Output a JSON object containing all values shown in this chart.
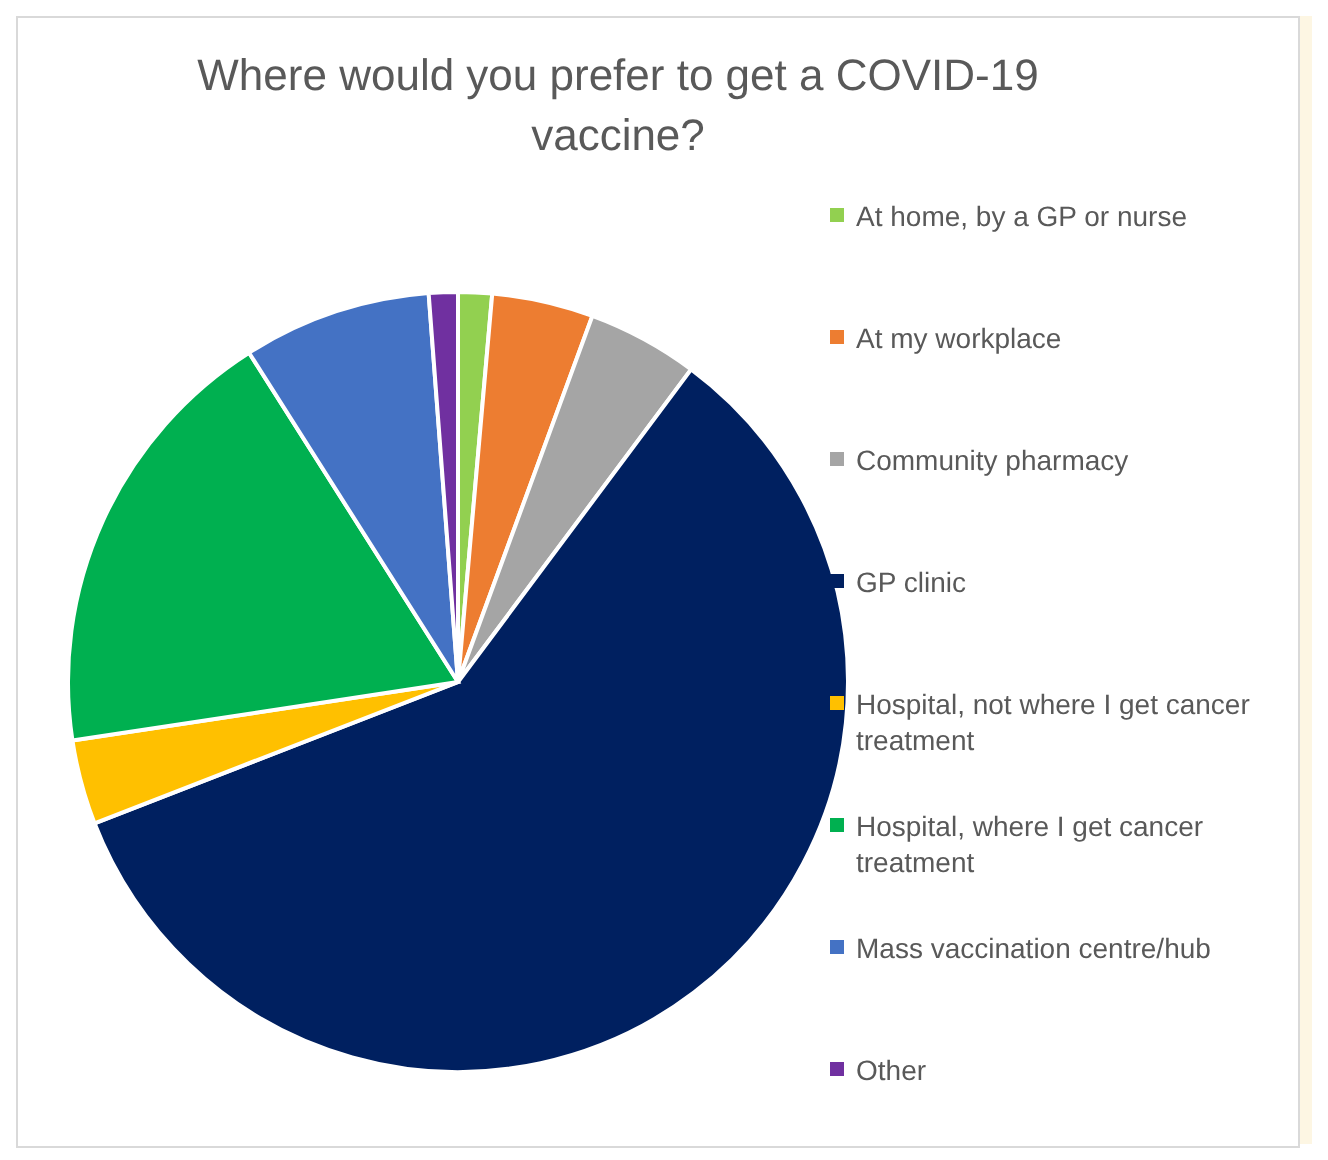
{
  "chart_data": {
    "type": "pie",
    "title": "Where would you prefer to get a COVID-19 vaccine?",
    "categories": [
      "At home, by a GP or nurse",
      "At my workplace",
      "Community pharmacy",
      "GP clinic",
      "Hospital, not where I get cancer treatment",
      "Hospital, where I get cancer treatment",
      "Mass vaccination centre/hub",
      "Other"
    ],
    "values": [
      1.4,
      4.2,
      4.6,
      58.9,
      3.5,
      18.4,
      7.8,
      1.2
    ],
    "colors": [
      "#92d050",
      "#ed7d31",
      "#a5a5a5",
      "#002060",
      "#ffc000",
      "#00b050",
      "#4472c4",
      "#7030a0"
    ],
    "legend": "right"
  }
}
